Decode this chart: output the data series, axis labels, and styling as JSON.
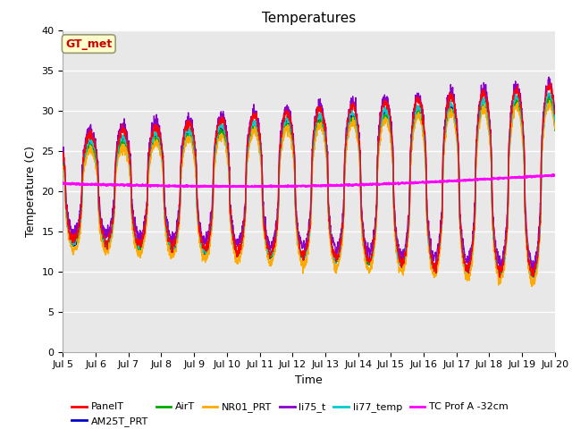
{
  "title": "Temperatures",
  "xlabel": "Time",
  "ylabel": "Temperature (C)",
  "ylim": [
    0,
    40
  ],
  "xlim": [
    0,
    15
  ],
  "xtick_labels": [
    "Jul 5",
    "Jul 6",
    "Jul 7",
    "Jul 8",
    "Jul 9",
    "Jul 10",
    "Jul 11",
    "Jul 12",
    "Jul 13",
    "Jul 14",
    "Jul 15",
    "Jul 16",
    "Jul 17",
    "Jul 18",
    "Jul 19",
    "Jul 20"
  ],
  "annotation_text": "GT_met",
  "annotation_color": "#cc0000",
  "annotation_bg": "#ffffcc",
  "series_colors": {
    "PanelT": "#ff0000",
    "AM25T_PRT": "#0000cc",
    "AirT": "#00aa00",
    "NR01_PRT": "#ffaa00",
    "li75_t": "#8800cc",
    "li77_temp": "#00cccc",
    "TC Prof A -32cm": "#ff00ff"
  },
  "bg_color": "#e8e8e8",
  "grid_color": "#ffffff",
  "title_fontsize": 11,
  "axis_fontsize": 9,
  "tick_fontsize": 8,
  "legend_fontsize": 8
}
